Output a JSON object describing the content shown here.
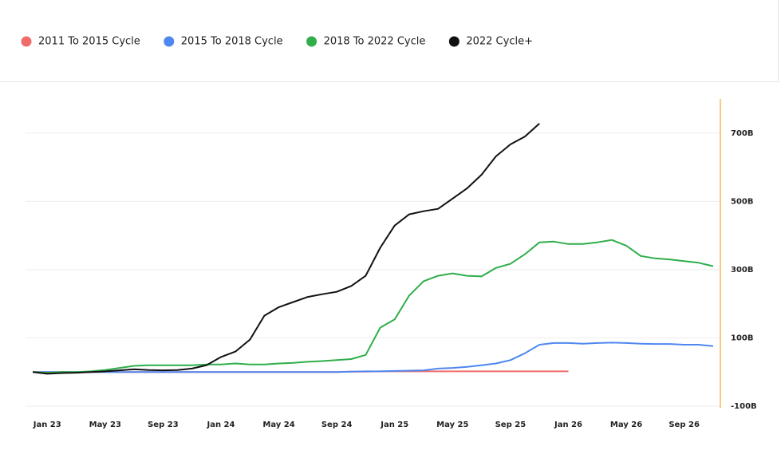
{
  "chart_data": {
    "type": "line",
    "categories": [
      null,
      "Jan 23",
      null,
      null,
      null,
      "May 23",
      null,
      null,
      null,
      "Sep 23",
      null,
      null,
      null,
      "Jan 24",
      null,
      null,
      null,
      "May 24",
      null,
      null,
      null,
      "Sep 24",
      null,
      null,
      null,
      "Jan 25",
      null,
      null,
      null,
      "May 25",
      null,
      null,
      null,
      "Sep 25",
      null,
      null,
      null,
      "Jan 26",
      null,
      null,
      null,
      "May 26",
      null,
      null,
      null,
      "Sep 26",
      null,
      null
    ],
    "series": [
      {
        "name": "2011 To 2015 Cycle",
        "color": "#f26b6b",
        "values": [
          0,
          0,
          0,
          0,
          0,
          0,
          0,
          0,
          0,
          0,
          0,
          0,
          0,
          0,
          0,
          0,
          0,
          0,
          0,
          0,
          0,
          0,
          1,
          1,
          2,
          2,
          2,
          2,
          2,
          2,
          2,
          2,
          2,
          2,
          2,
          2,
          2,
          2,
          null,
          null,
          null,
          null,
          null,
          null,
          null,
          null,
          null,
          null
        ]
      },
      {
        "name": "2015 To 2018 Cycle",
        "color": "#4f87f0",
        "values": [
          0,
          0,
          0,
          0,
          0,
          0,
          0,
          0,
          0,
          0,
          0,
          0,
          0,
          0,
          0,
          0,
          0,
          0,
          0,
          0,
          0,
          0,
          1,
          2,
          2,
          3,
          4,
          5,
          10,
          12,
          15,
          20,
          25,
          35,
          55,
          80,
          85,
          85,
          83,
          85,
          86,
          85,
          83,
          82,
          82,
          80,
          80,
          76
        ]
      },
      {
        "name": "2018 To 2022 Cycle",
        "color": "#2fae4a",
        "values": [
          0,
          -2,
          0,
          0,
          2,
          6,
          12,
          18,
          20,
          20,
          20,
          20,
          22,
          22,
          25,
          22,
          22,
          25,
          27,
          30,
          32,
          35,
          38,
          50,
          130,
          154,
          224,
          266,
          282,
          289,
          282,
          280,
          305,
          317,
          345,
          380,
          382,
          375,
          375,
          380,
          387,
          370,
          340,
          333,
          330,
          325,
          320,
          310
        ]
      },
      {
        "name": "2022 Cycle+",
        "color": "#111111",
        "values": [
          0,
          -5,
          -3,
          -2,
          0,
          2,
          5,
          8,
          6,
          5,
          6,
          10,
          20,
          44,
          60,
          95,
          165,
          190,
          205,
          220,
          228,
          235,
          252,
          282,
          364,
          429,
          462,
          471,
          478,
          508,
          538,
          578,
          632,
          667,
          690,
          728,
          null,
          null,
          null,
          null,
          null,
          null,
          null,
          null,
          null,
          null,
          null,
          null
        ]
      }
    ],
    "ylim": [
      -100,
      800
    ],
    "yticks": [
      {
        "value": -100,
        "label": "-100B"
      },
      {
        "value": 100,
        "label": "100B"
      },
      {
        "value": 300,
        "label": "300B"
      },
      {
        "value": 500,
        "label": "500B"
      },
      {
        "value": 700,
        "label": "700B"
      }
    ],
    "grid": true,
    "axis_color": "#f0a830"
  }
}
